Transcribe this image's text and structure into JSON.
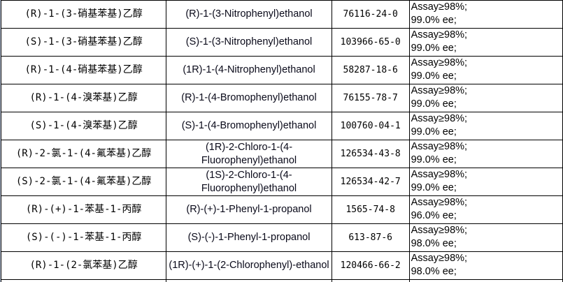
{
  "rows": [
    {
      "cn": "(R)-1-(3-硝基苯基)乙醇",
      "en": "(R)-1-(3-Nitrophenyl)ethanol",
      "cas": "76116-24-0",
      "spec1": "Assay≥98%;",
      "spec2": "99.0% ee;"
    },
    {
      "cn": "(S)-1-(3-硝基苯基)乙醇",
      "en": "(S)-1-(3-Nitrophenyl)ethanol",
      "cas": "103966-65-0",
      "spec1": "Assay≥98%;",
      "spec2": "99.0% ee;"
    },
    {
      "cn": "(R)-1-(4-硝基苯基)乙醇",
      "en": "(1R)-1-(4-Nitrophenyl)ethanol",
      "cas": "58287-18-6",
      "spec1": "Assay≥98%;",
      "spec2": "99.0% ee;"
    },
    {
      "cn": "(R)-1-(4-溴苯基)乙醇",
      "en": "(R)-1-(4-Bromophenyl)ethanol",
      "cas": "76155-78-7",
      "spec1": "Assay≥98%;",
      "spec2": "99.0% ee;"
    },
    {
      "cn": "(S)-1-(4-溴苯基)乙醇",
      "en": "(S)-1-(4-Bromophenyl)ethanol",
      "cas": "100760-04-1",
      "spec1": "Assay≥98%;",
      "spec2": "99.0% ee;"
    },
    {
      "cn": "(R)-2-氯-1-(4-氟苯基)乙醇",
      "en": "(1R)-2-Chloro-1-(4-Fluorophenyl)ethanol",
      "cas": "126534-43-8",
      "spec1": "Assay≥98%;",
      "spec2": "99.0% ee;"
    },
    {
      "cn": "(S)-2-氯-1-(4-氟苯基)乙醇",
      "en": "(1S)-2-Chloro-1-(4-Fluorophenyl)ethanol",
      "cas": "126534-42-7",
      "spec1": "Assay≥98%;",
      "spec2": "99.0% ee;"
    },
    {
      "cn": "(R)-(+)-1-苯基-1-丙醇",
      "en": "(R)-(+)-1-Phenyl-1-propanol",
      "cas": "1565-74-8",
      "spec1": "Assay≥98%;",
      "spec2": "96.0% ee;"
    },
    {
      "cn": "(S)-(-)-1-苯基-1-丙醇",
      "en": "(S)-(-)-1-Phenyl-1-propanol",
      "cas": "613-87-6",
      "spec1": "Assay≥98%;",
      "spec2": "98.0% ee;"
    },
    {
      "cn": "(R)-1-(2-氯苯基)乙醇",
      "en": "(1R)-(+)-1-(2-Chlorophenyl)-ethanol",
      "cas": "120466-66-2",
      "spec1": "Assay≥98%;",
      "spec2": "98.0% ee;"
    }
  ]
}
